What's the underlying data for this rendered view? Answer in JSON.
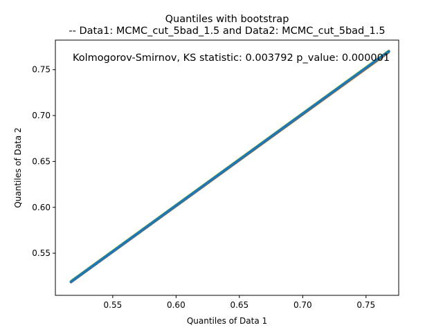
{
  "chart_data": {
    "type": "line",
    "title_line1": "Quantiles with bootstrap",
    "title_line2": "-- Data1: MCMC_cut_5bad_1.5 and Data2: MCMC_cut_5bad_1.5",
    "annotation": "Kolmogorov-Smirnov, KS statistic: 0.003792 p_value: 0.000001",
    "xlabel": "Quantiles of Data 1",
    "ylabel": "Quantiles of Data 2",
    "xlim": [
      0.5047,
      0.7758
    ],
    "ylim": [
      0.5041,
      0.7822
    ],
    "xticks": [
      0.55,
      0.6,
      0.65,
      0.7,
      0.75
    ],
    "xtick_labels": [
      "0.55",
      "0.60",
      "0.65",
      "0.70",
      "0.75"
    ],
    "yticks": [
      0.55,
      0.6,
      0.65,
      0.7,
      0.75
    ],
    "ytick_labels": [
      "0.55",
      "0.60",
      "0.65",
      "0.70",
      "0.75"
    ],
    "grid": false,
    "series": [
      {
        "x": [
          0.517,
          0.768
        ],
        "y": [
          0.5185,
          0.769
        ],
        "color": "#d62728"
      },
      {
        "x": [
          0.517,
          0.768
        ],
        "y": [
          0.518,
          0.7685
        ],
        "color": "#ff7f0e"
      },
      {
        "x": [
          0.517,
          0.768
        ],
        "y": [
          0.52,
          0.771
        ],
        "color": "#bcbd22"
      },
      {
        "x": [
          0.517,
          0.768
        ],
        "y": [
          0.5195,
          0.7705
        ],
        "color": "#2ca02c"
      },
      {
        "x": [
          0.517,
          0.768
        ],
        "y": [
          0.519,
          0.77
        ],
        "color": "#17becf"
      },
      {
        "x": [
          0.517,
          0.768
        ],
        "y": [
          0.5188,
          0.7698
        ],
        "color": "#1f77b4"
      }
    ]
  }
}
